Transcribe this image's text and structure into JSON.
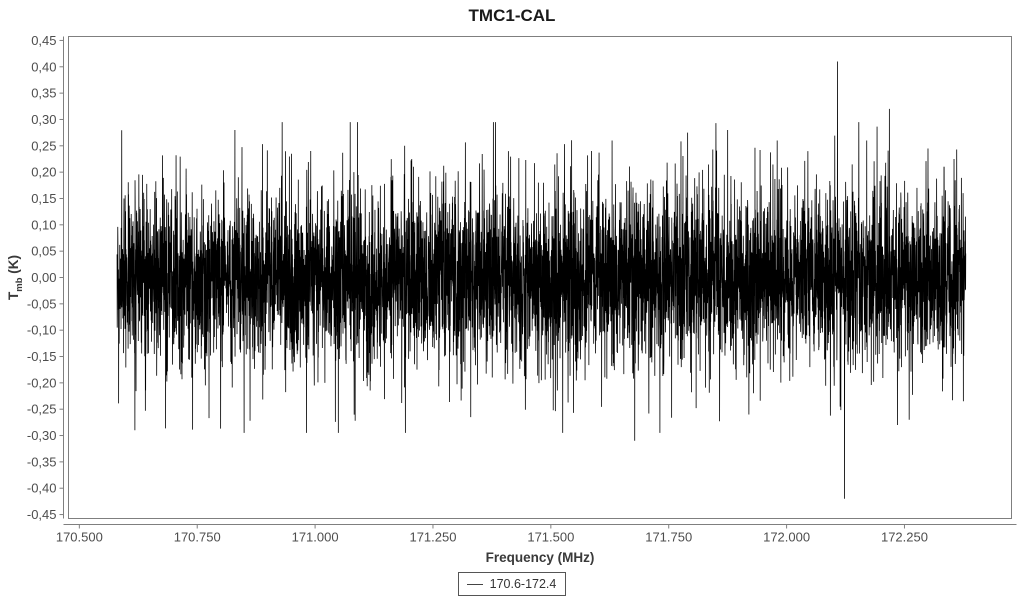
{
  "title": "TMC1-CAL",
  "axes": {
    "x_label": "Frequency (MHz)",
    "y_label_main": "T",
    "y_label_sub": "mb",
    "y_label_unit": " (K)"
  },
  "legend": {
    "entries": [
      {
        "label": "170.6-172.4",
        "color": "#000000"
      }
    ]
  },
  "colors": {
    "trace": "#000000",
    "frame": "#7f7f7f",
    "tick_text": "#4d4d4d",
    "title_text": "#1a1a1a",
    "legend_border": "#555555"
  },
  "chart_data": {
    "type": "line",
    "title": "TMC1-CAL",
    "xlabel": "Frequency (MHz)",
    "ylabel": "T_mb (K)",
    "xlim": [
      170.477,
      172.477
    ],
    "ylim": [
      -0.4575,
      0.4575
    ],
    "grid": false,
    "legend_position": "bottom-center",
    "x_ticks": [
      170.5,
      170.75,
      171.0,
      171.25,
      171.5,
      171.75,
      172.0,
      172.25
    ],
    "x_tick_labels": [
      "170.500",
      "170.750",
      "171.000",
      "171.250",
      "171.500",
      "171.750",
      "172.000",
      "172.250"
    ],
    "y_ticks": [
      0.45,
      0.4,
      0.35,
      0.3,
      0.25,
      0.2,
      0.15,
      0.1,
      0.05,
      0.0,
      -0.05,
      -0.1,
      -0.15,
      -0.2,
      -0.25,
      -0.3,
      -0.35,
      -0.4,
      -0.45
    ],
    "y_tick_labels": [
      "0,45",
      "0,40",
      "0,35",
      "0,30",
      "0,25",
      "0,20",
      "0,15",
      "0,10",
      "0,05",
      "0,00",
      "-0,05",
      "-0,10",
      "-0,15",
      "-0,20",
      "-0,25",
      "-0,30",
      "-0,35",
      "-0,40",
      "-0,45"
    ],
    "series": [
      {
        "name": "170.6-172.4",
        "color": "#000000",
        "kind": "noise-spectrum",
        "x_start": 170.58,
        "x_end": 172.38,
        "n_points": 6000,
        "baseline": 0.0,
        "noise_mixture": [
          {
            "weight": 0.55,
            "sigma": 0.065
          },
          {
            "weight": 0.35,
            "sigma": 0.1
          },
          {
            "weight": 0.1,
            "sigma": 0.12
          }
        ],
        "clip": 0.295,
        "seed": 1337
      }
    ],
    "spikes": [
      [
        170.64,
        -0.253
      ],
      [
        170.705,
        0.232
      ],
      [
        170.775,
        -0.267
      ],
      [
        170.83,
        0.28
      ],
      [
        170.862,
        -0.272
      ],
      [
        170.95,
        0.235
      ],
      [
        171.085,
        -0.272
      ],
      [
        171.19,
        0.25
      ],
      [
        171.205,
        0.225
      ],
      [
        171.33,
        -0.265
      ],
      [
        171.41,
        0.24
      ],
      [
        171.505,
        -0.252
      ],
      [
        171.63,
        0.26
      ],
      [
        171.678,
        -0.31
      ],
      [
        171.79,
        0.275
      ],
      [
        171.875,
        0.28
      ],
      [
        171.92,
        -0.26
      ],
      [
        171.98,
        0.26
      ],
      [
        172.045,
        0.24
      ],
      [
        172.108,
        0.41
      ],
      [
        172.123,
        -0.42
      ],
      [
        172.17,
        0.26
      ],
      [
        172.218,
        0.32
      ],
      [
        172.235,
        -0.28
      ],
      [
        172.26,
        -0.27
      ],
      [
        172.3,
        0.245
      ],
      [
        172.355,
        0.225
      ],
      [
        172.375,
        -0.235
      ]
    ]
  }
}
